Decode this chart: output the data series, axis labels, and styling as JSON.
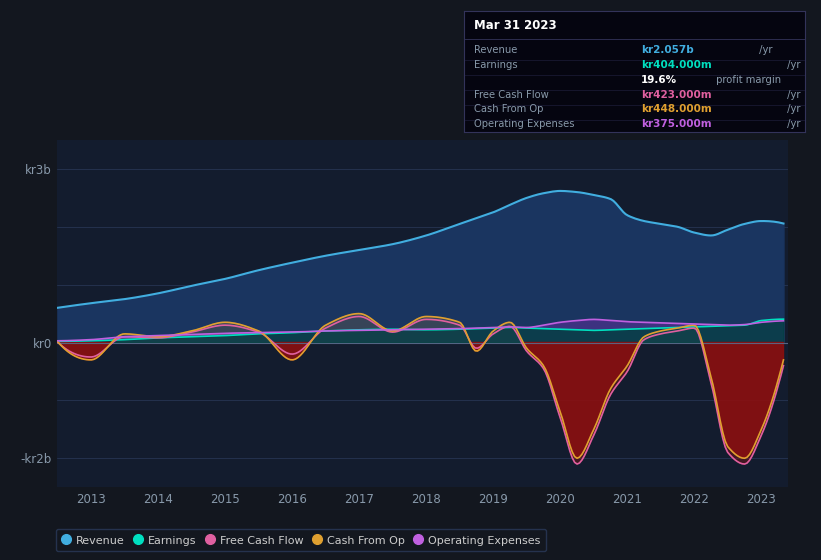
{
  "bg_color": "#13171f",
  "plot_bg_color": "#131c2e",
  "title_date": "Mar 31 2023",
  "info_box_bg": "#000000",
  "info_box_border": "#333355",
  "ylabel_top": "kr3b",
  "ylabel_zero": "kr0",
  "ylabel_bottom": "-kr2b",
  "ylim": [
    -2500000000.0,
    3500000000.0
  ],
  "xlim": [
    2012.5,
    2023.4
  ],
  "yticks": [
    3000000000.0,
    0,
    -2000000000.0
  ],
  "xticks": [
    2013,
    2014,
    2015,
    2016,
    2017,
    2018,
    2019,
    2020,
    2021,
    2022,
    2023
  ],
  "colors": {
    "revenue": "#41aee0",
    "earnings": "#00e0c0",
    "free_cash_flow": "#e060a0",
    "cash_from_op": "#e0a030",
    "op_expenses": "#c060e0",
    "neg_fill": "#8B1010",
    "pos_op_fill": "#6030a0",
    "revenue_fill": "#1a3560"
  },
  "legend": [
    {
      "label": "Revenue",
      "color": "#41aee0"
    },
    {
      "label": "Earnings",
      "color": "#00e0c0"
    },
    {
      "label": "Free Cash Flow",
      "color": "#e060a0"
    },
    {
      "label": "Cash From Op",
      "color": "#e0a030"
    },
    {
      "label": "Operating Expenses",
      "color": "#c060e0"
    }
  ],
  "info_rows": [
    {
      "label": "Revenue",
      "value": "kr2.057b",
      "unit": " /yr",
      "color": "#41aee0"
    },
    {
      "label": "Earnings",
      "value": "kr404.000m",
      "unit": " /yr",
      "color": "#00e0c0"
    },
    {
      "label": "",
      "value": "19.6%",
      "unit": " profit margin",
      "color": "#ffffff"
    },
    {
      "label": "Free Cash Flow",
      "value": "kr423.000m",
      "unit": " /yr",
      "color": "#e060a0"
    },
    {
      "label": "Cash From Op",
      "value": "kr448.000m",
      "unit": " /yr",
      "color": "#e0a030"
    },
    {
      "label": "Operating Expenses",
      "value": "kr375.000m",
      "unit": " /yr",
      "color": "#c060e0"
    }
  ]
}
